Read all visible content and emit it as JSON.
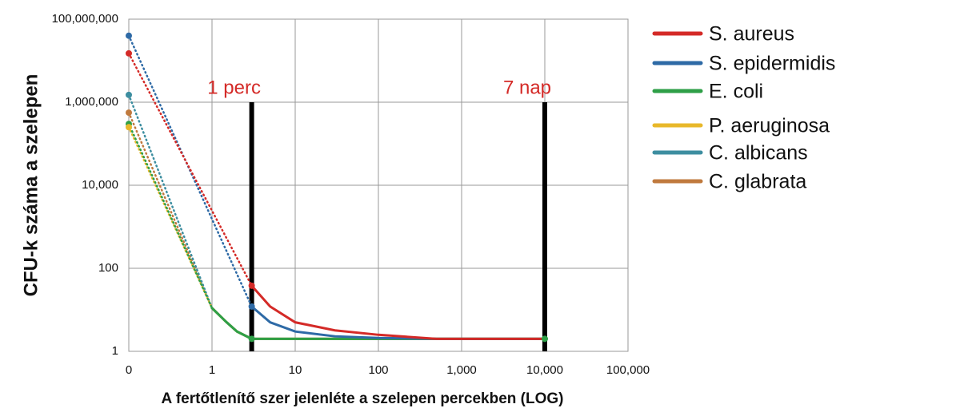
{
  "chart_data": {
    "type": "line",
    "x_label": "A fertőtlenítő szer jelenléte a szelepen percekben (LOG)",
    "y_label": "CFU-k száma a szelepen",
    "x_scale": "log",
    "y_scale": "log",
    "grid": true,
    "legend": "right",
    "first_segment_style": "dotted",
    "xlim": [
      0,
      100000
    ],
    "xticks": [
      0,
      1,
      10,
      100,
      {
        "value": 1000,
        "label": "1,000"
      },
      {
        "value": 10000,
        "label": "10,000"
      },
      {
        "value": 100000,
        "label": "100,000"
      }
    ],
    "ylim": [
      1,
      100000000
    ],
    "yticks": [
      1,
      100,
      {
        "value": 10000,
        "label": "10,000"
      },
      {
        "value": 1000000,
        "label": "1,000,000"
      },
      {
        "value": 100000000,
        "label": "100,000,000"
      }
    ],
    "annotations": [
      {
        "text": "1 perc",
        "x": 3,
        "top": 1000000,
        "color": "#d42a27"
      },
      {
        "text": "7 nap",
        "x": 10000,
        "top": 1000000,
        "color": "#d42a27"
      }
    ],
    "series": [
      {
        "name": "S. aureus",
        "color": "#d42a27",
        "x": [
          0,
          3,
          5,
          10,
          30,
          100,
          500,
          10000
        ],
        "values": [
          15000000,
          38,
          12,
          5,
          3.2,
          2.5,
          2,
          2
        ],
        "markers": [
          0,
          1
        ]
      },
      {
        "name": "S. epidermidis",
        "color": "#2e6aa6",
        "x": [
          0,
          3,
          5,
          10,
          30,
          100,
          500,
          10000
        ],
        "values": [
          40000000,
          12,
          5,
          3,
          2.3,
          2.1,
          2,
          2
        ],
        "markers": [
          0,
          1
        ]
      },
      {
        "name": "E. coli",
        "color": "#2e9f47",
        "x": [
          0,
          1,
          1.5,
          2,
          3,
          10000
        ],
        "values": [
          300000,
          11,
          5,
          3,
          2,
          2
        ],
        "markers": [
          0,
          4,
          5
        ]
      },
      {
        "name": "P. aeruginosa",
        "color": "#e8b82a",
        "x": [
          0,
          1,
          1.5,
          2,
          3,
          10000
        ],
        "values": [
          250000,
          11,
          5,
          3,
          2,
          2
        ],
        "markers": [
          0
        ]
      },
      {
        "name": "C. albicans",
        "color": "#3d8ea0",
        "x": [
          0,
          1,
          1.5,
          2,
          3,
          10000
        ],
        "values": [
          1500000,
          11,
          5,
          3,
          2,
          2
        ],
        "markers": [
          0
        ]
      },
      {
        "name": "C. glabrata",
        "color": "#c07a3e",
        "x": [
          0,
          1,
          1.5,
          2,
          3,
          10000
        ],
        "values": [
          560000,
          11,
          5,
          3,
          2,
          2
        ],
        "markers": [
          0
        ]
      }
    ]
  }
}
